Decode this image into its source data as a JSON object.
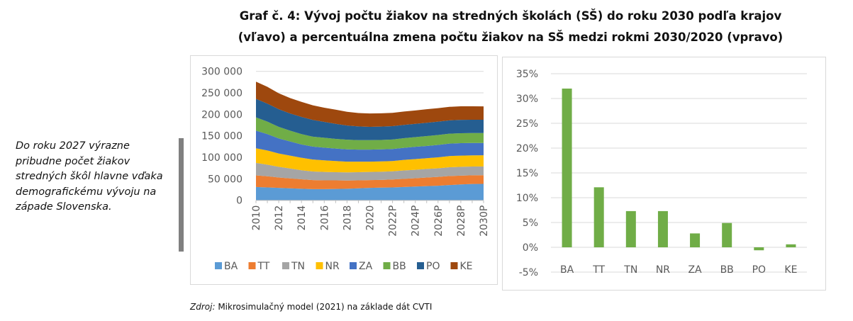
{
  "title": {
    "line1": "Graf č. 4: Vývoj počtu žiakov na stredných školách (SŠ) do roku 2030 podľa krajov",
    "line2": "(vľavo) a percentuálna zmena počtu žiakov na SŠ medzi rokmi 2030/2020 (vpravo)"
  },
  "side_note": "Do roku 2027 výrazne pribudne počet žiakov stredných škôl hlavne vďaka demografickému vývoju na západe Slovenska.",
  "source": {
    "label": "Zdroj:",
    "text": " Mikrosimulačný model (2021)  na základe dát CVTI"
  },
  "chart_data": [
    {
      "type": "area",
      "stacked": true,
      "value_scale": 1000,
      "x": [
        "2010",
        "2011",
        "2012",
        "2013",
        "2014",
        "2015",
        "2016",
        "2017",
        "2018",
        "2019",
        "2020",
        "2021P",
        "2022P",
        "2023P",
        "2024P",
        "2025P",
        "2026P",
        "2027P",
        "2028P",
        "2029P",
        "2030P"
      ],
      "x_tick_labels": [
        "2010",
        "2012",
        "2014",
        "2016",
        "2018",
        "2020",
        "2022P",
        "2024P",
        "2026P",
        "2028P",
        "2030P"
      ],
      "y_tick_labels": [
        "0",
        "50 000",
        "100 000",
        "150 000",
        "200 000",
        "250 000",
        "300 000"
      ],
      "ylim": [
        0,
        300000
      ],
      "legend_position": "bottom",
      "grid": true,
      "series": [
        {
          "name": "BA",
          "color": "#5b9bd5",
          "values": [
            31,
            30,
            29,
            28,
            27,
            26,
            26,
            26.5,
            27,
            28,
            29,
            29.5,
            30,
            31,
            32,
            33,
            34,
            35.5,
            37,
            38,
            38.3
          ]
        },
        {
          "name": "TT",
          "color": "#ed7d31",
          "values": [
            27,
            26,
            24,
            23,
            22,
            21,
            20.5,
            20,
            19,
            18.5,
            18,
            18,
            18.5,
            19,
            19.5,
            20,
            20.5,
            21,
            20.5,
            20.3,
            20.2
          ]
        },
        {
          "name": "TN",
          "color": "#a5a5a5",
          "values": [
            29,
            27,
            25,
            23,
            21,
            20,
            19.5,
            19,
            19,
            19,
            19,
            19,
            19,
            19.5,
            19.5,
            20,
            20,
            20.5,
            20.5,
            20.4,
            20.4
          ]
        },
        {
          "name": "NR",
          "color": "#ffc000",
          "values": [
            34,
            33,
            31,
            30,
            29,
            28,
            27,
            26,
            25,
            24.5,
            24,
            24,
            24,
            24.5,
            25,
            25,
            25.5,
            26,
            26,
            25.9,
            25.8
          ]
        },
        {
          "name": "ZA",
          "color": "#4472c4",
          "values": [
            41,
            38,
            35,
            33,
            31,
            30,
            29.5,
            29,
            28.5,
            28,
            28,
            28,
            28,
            28,
            28.5,
            28.5,
            29,
            29,
            29,
            28.9,
            28.8
          ]
        },
        {
          "name": "BB",
          "color": "#70ad47",
          "values": [
            31,
            29,
            27,
            25,
            24,
            23,
            23,
            22.5,
            22.5,
            22,
            22,
            22,
            22,
            22.5,
            22.5,
            23,
            23,
            23,
            23.2,
            23.1,
            23.1
          ]
        },
        {
          "name": "PO",
          "color": "#255e91",
          "values": [
            43,
            42,
            41,
            40,
            40,
            39,
            37,
            35,
            33,
            32,
            31,
            31,
            31,
            31,
            31,
            31,
            31,
            31,
            31,
            30.9,
            30.8
          ]
        },
        {
          "name": "KE",
          "color": "#9e480e",
          "values": [
            40,
            39,
            37,
            36,
            35,
            34,
            33,
            33,
            32,
            31,
            31,
            31,
            31,
            31,
            31,
            31.5,
            31.5,
            31.5,
            31.5,
            31.3,
            31.2
          ]
        }
      ]
    },
    {
      "type": "bar",
      "categories": [
        "BA",
        "TT",
        "TN",
        "NR",
        "ZA",
        "BB",
        "PO",
        "KE"
      ],
      "values": [
        32.0,
        12.1,
        7.3,
        7.3,
        2.8,
        4.9,
        -0.6,
        0.6
      ],
      "unit": "%",
      "color": "#70ad47",
      "y_tick_labels": [
        "-5%",
        "0%",
        "5%",
        "10%",
        "15%",
        "20%",
        "25%",
        "30%",
        "35%"
      ],
      "ylim": [
        -5,
        35
      ],
      "grid": true
    }
  ]
}
